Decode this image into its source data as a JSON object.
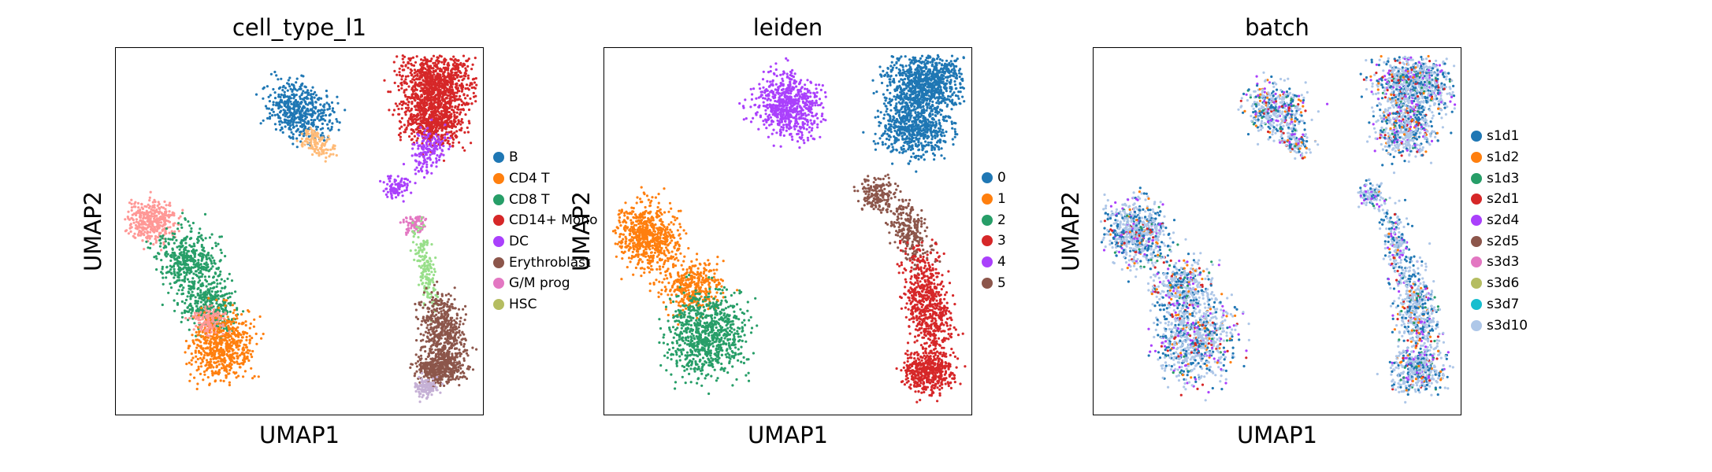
{
  "chart_data": [
    {
      "type": "scatter",
      "title": "cell_type_l1",
      "xlabel": "UMAP1",
      "ylabel": "UMAP2",
      "legend_position": "right",
      "grid": false,
      "categories": [
        "B",
        "CD4 T",
        "CD8 T",
        "CD14+ Mono",
        "DC",
        "Erythroblast",
        "G/M prog",
        "HSC"
      ],
      "colors": [
        "#1f77b4",
        "#ff7f0e",
        "#279e68",
        "#d62728",
        "#aa40fc",
        "#8c564b",
        "#e377c2",
        "#b5bd61"
      ],
      "extra_colors": {
        "lavender_cluster": "#c5b0d5",
        "light_orange_cluster": "#ffbb78",
        "light_pink_cluster": "#ff9896",
        "light_green_cluster": "#98df8a"
      }
    },
    {
      "type": "scatter",
      "title": "leiden",
      "xlabel": "UMAP1",
      "ylabel": "UMAP2",
      "legend_position": "right",
      "grid": false,
      "categories": [
        "0",
        "1",
        "2",
        "3",
        "4",
        "5"
      ],
      "colors": [
        "#1f77b4",
        "#ff7f0e",
        "#279e68",
        "#d62728",
        "#aa40fc",
        "#8c564b"
      ]
    },
    {
      "type": "scatter",
      "title": "batch",
      "xlabel": "UMAP1",
      "ylabel": "UMAP2",
      "legend_position": "right",
      "grid": false,
      "categories": [
        "s1d1",
        "s1d2",
        "s1d3",
        "s2d1",
        "s2d4",
        "s2d5",
        "s3d3",
        "s3d6",
        "s3d7",
        "s3d10"
      ],
      "colors": [
        "#1f77b4",
        "#ff7f0e",
        "#279e68",
        "#d62728",
        "#aa40fc",
        "#8c564b",
        "#e377c2",
        "#b5bd61",
        "#17becf",
        "#aec7e8"
      ]
    }
  ]
}
